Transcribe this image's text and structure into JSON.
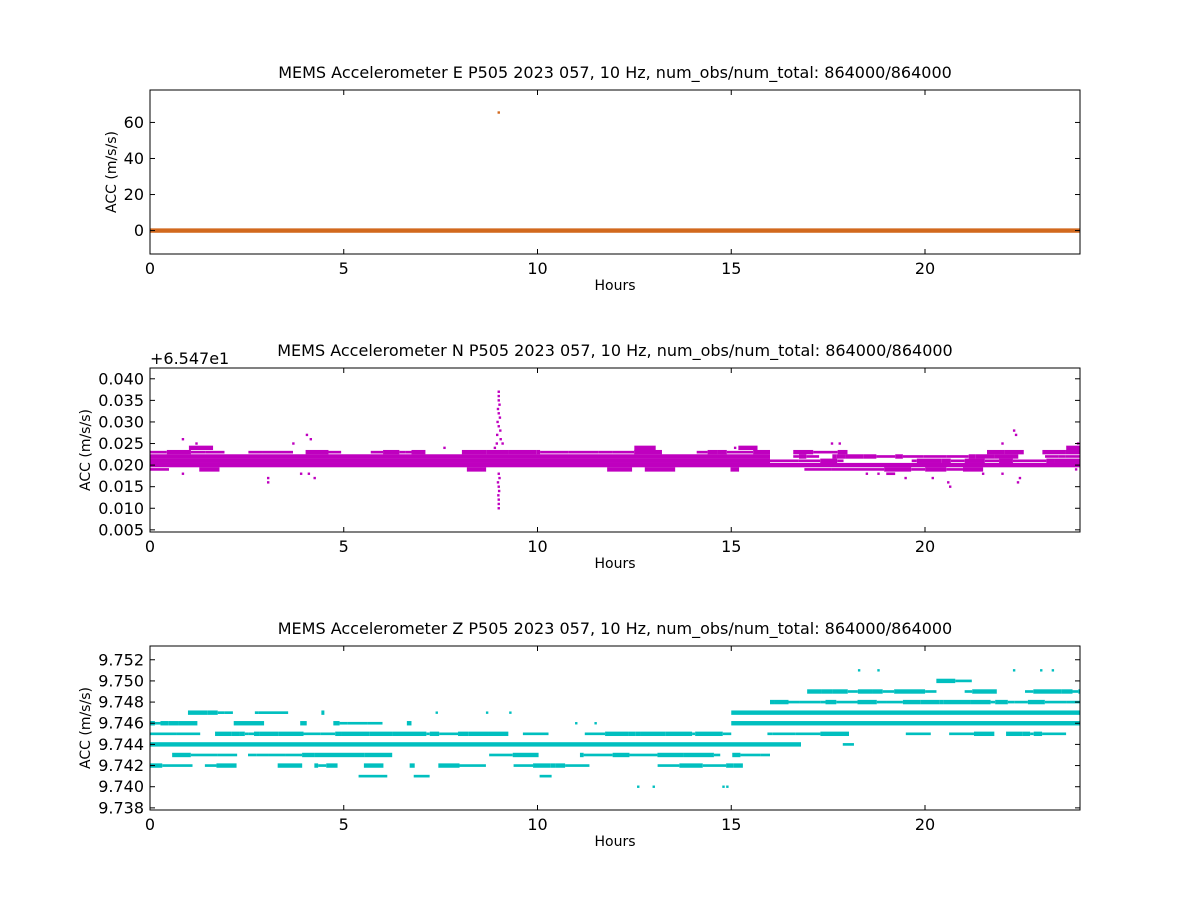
{
  "chart_data": [
    {
      "type": "scatter",
      "title": "MEMS Accelerometer E P505 2023 057, 10 Hz, num_obs/num_total: 864000/864000",
      "xlabel": "Hours",
      "ylabel": "ACC (m/s/s)",
      "offset_text": "",
      "xlim": [
        0,
        24
      ],
      "ylim": [
        -13,
        78
      ],
      "xticks": [
        0,
        5,
        10,
        15,
        20
      ],
      "yticks": [
        0,
        20,
        40,
        60
      ],
      "color": "#d2691e",
      "series": [
        {
          "bands": [
            {
              "y": 0.0,
              "x_start": 0.0,
              "x_end": 24.0,
              "density": 1.0
            }
          ],
          "points": [
            {
              "x": 9.0,
              "y": 65.5
            }
          ]
        }
      ]
    },
    {
      "type": "scatter",
      "title": "MEMS Accelerometer N P505 2023 057, 10 Hz, num_obs/num_total: 864000/864000",
      "xlabel": "Hours",
      "ylabel": "ACC (m/s/s)",
      "offset_text": "+6.547e1",
      "xlim": [
        0,
        24
      ],
      "ylim": [
        0.0045,
        0.0425
      ],
      "xticks": [
        0,
        5,
        10,
        15,
        20
      ],
      "yticks": [
        0.005,
        0.01,
        0.015,
        0.02,
        0.025,
        0.03,
        0.035,
        0.04
      ],
      "ytick_decimals": 3,
      "color": "#bf00bf",
      "series": [
        {
          "bands": [
            {
              "y": 0.021,
              "x_start": 0.0,
              "x_end": 16.0,
              "density": 1.0
            },
            {
              "y": 0.022,
              "x_start": 0.0,
              "x_end": 16.0,
              "density": 1.0
            },
            {
              "y": 0.02,
              "x_start": 0.0,
              "x_end": 16.0,
              "density": 1.0
            },
            {
              "y": 0.023,
              "x_start": 0.0,
              "x_end": 16.0,
              "density": 0.85
            },
            {
              "y": 0.019,
              "x_start": 0.0,
              "x_end": 16.0,
              "density": 0.25
            },
            {
              "y": 0.024,
              "x_start": 0.0,
              "x_end": 16.0,
              "density": 0.12
            },
            {
              "y": 0.02,
              "x_start": 16.0,
              "x_end": 24.0,
              "density": 1.0
            },
            {
              "y": 0.021,
              "x_start": 16.0,
              "x_end": 24.0,
              "density": 0.95
            },
            {
              "y": 0.022,
              "x_start": 16.6,
              "x_end": 24.0,
              "density": 0.75
            },
            {
              "y": 0.019,
              "x_start": 16.0,
              "x_end": 21.5,
              "density": 0.6
            },
            {
              "y": 0.018,
              "x_start": 19.0,
              "x_end": 20.0,
              "density": 0.8
            },
            {
              "y": 0.023,
              "x_start": 16.6,
              "x_end": 18.0,
              "density": 0.6
            },
            {
              "y": 0.023,
              "x_start": 21.6,
              "x_end": 24.0,
              "density": 0.7
            },
            {
              "y": 0.024,
              "x_start": 22.5,
              "x_end": 24.0,
              "density": 0.5
            }
          ],
          "points": [
            {
              "x": 9.0,
              "y": 0.037
            },
            {
              "x": 9.0,
              "y": 0.036
            },
            {
              "x": 9.0,
              "y": 0.035
            },
            {
              "x": 9.02,
              "y": 0.034
            },
            {
              "x": 8.98,
              "y": 0.033
            },
            {
              "x": 9.0,
              "y": 0.032
            },
            {
              "x": 9.03,
              "y": 0.031
            },
            {
              "x": 8.97,
              "y": 0.03
            },
            {
              "x": 9.0,
              "y": 0.029
            },
            {
              "x": 9.04,
              "y": 0.028
            },
            {
              "x": 8.96,
              "y": 0.027
            },
            {
              "x": 9.05,
              "y": 0.026
            },
            {
              "x": 8.95,
              "y": 0.025
            },
            {
              "x": 9.1,
              "y": 0.025
            },
            {
              "x": 8.9,
              "y": 0.024
            },
            {
              "x": 9.0,
              "y": 0.018
            },
            {
              "x": 9.02,
              "y": 0.017
            },
            {
              "x": 8.98,
              "y": 0.016
            },
            {
              "x": 9.0,
              "y": 0.015
            },
            {
              "x": 9.01,
              "y": 0.014
            },
            {
              "x": 8.99,
              "y": 0.013
            },
            {
              "x": 9.0,
              "y": 0.012
            },
            {
              "x": 9.0,
              "y": 0.011
            },
            {
              "x": 9.0,
              "y": 0.01
            },
            {
              "x": 0.85,
              "y": 0.026
            },
            {
              "x": 0.85,
              "y": 0.018
            },
            {
              "x": 1.2,
              "y": 0.025
            },
            {
              "x": 3.05,
              "y": 0.016
            },
            {
              "x": 3.05,
              "y": 0.017
            },
            {
              "x": 3.7,
              "y": 0.025
            },
            {
              "x": 4.05,
              "y": 0.027
            },
            {
              "x": 4.15,
              "y": 0.026
            },
            {
              "x": 4.1,
              "y": 0.018
            },
            {
              "x": 4.25,
              "y": 0.017
            },
            {
              "x": 3.9,
              "y": 0.018
            },
            {
              "x": 7.6,
              "y": 0.024
            },
            {
              "x": 15.1,
              "y": 0.024
            },
            {
              "x": 17.6,
              "y": 0.025
            },
            {
              "x": 17.8,
              "y": 0.025
            },
            {
              "x": 18.5,
              "y": 0.018
            },
            {
              "x": 18.8,
              "y": 0.018
            },
            {
              "x": 19.5,
              "y": 0.017
            },
            {
              "x": 20.2,
              "y": 0.017
            },
            {
              "x": 20.6,
              "y": 0.016
            },
            {
              "x": 20.65,
              "y": 0.015
            },
            {
              "x": 21.5,
              "y": 0.018
            },
            {
              "x": 22.0,
              "y": 0.018
            },
            {
              "x": 22.3,
              "y": 0.028
            },
            {
              "x": 22.35,
              "y": 0.027
            },
            {
              "x": 22.4,
              "y": 0.016
            },
            {
              "x": 22.45,
              "y": 0.017
            },
            {
              "x": 22.0,
              "y": 0.025
            },
            {
              "x": 23.9,
              "y": 0.019
            },
            {
              "x": 23.95,
              "y": 0.025
            }
          ]
        }
      ]
    },
    {
      "type": "scatter",
      "title": "MEMS Accelerometer Z P505 2023 057, 10 Hz, num_obs/num_total: 864000/864000",
      "xlabel": "Hours",
      "ylabel": "ACC (m/s/s)",
      "offset_text": "",
      "xlim": [
        0,
        24
      ],
      "ylim": [
        9.7378,
        9.7533
      ],
      "xticks": [
        0,
        5,
        10,
        15,
        20
      ],
      "yticks": [
        9.738,
        9.74,
        9.742,
        9.744,
        9.746,
        9.748,
        9.75,
        9.752
      ],
      "ytick_decimals": 3,
      "color": "#00bfbf",
      "series": [
        {
          "bands": [
            {
              "y": 9.747,
              "x_start": 0.0,
              "x_end": 4.5,
              "density": 0.45
            },
            {
              "y": 9.746,
              "x_start": 0.0,
              "x_end": 6.0,
              "density": 0.7
            },
            {
              "y": 9.746,
              "x_start": 6.0,
              "x_end": 10.0,
              "density": 0.15
            },
            {
              "y": 9.745,
              "x_start": 0.0,
              "x_end": 15.0,
              "density": 0.95
            },
            {
              "y": 9.744,
              "x_start": 0.0,
              "x_end": 16.8,
              "density": 1.0
            },
            {
              "y": 9.743,
              "x_start": 0.0,
              "x_end": 16.0,
              "density": 0.75
            },
            {
              "y": 9.742,
              "x_start": 0.0,
              "x_end": 15.3,
              "density": 0.7
            },
            {
              "y": 9.741,
              "x_start": 5.0,
              "x_end": 15.0,
              "density": 0.35
            },
            {
              "y": 9.747,
              "x_start": 15.0,
              "x_end": 24.0,
              "density": 1.0
            },
            {
              "y": 9.746,
              "x_start": 15.0,
              "x_end": 24.0,
              "density": 1.0
            },
            {
              "y": 9.748,
              "x_start": 16.0,
              "x_end": 24.0,
              "density": 0.95
            },
            {
              "y": 9.749,
              "x_start": 16.5,
              "x_end": 24.0,
              "density": 0.9
            },
            {
              "y": 9.745,
              "x_start": 15.0,
              "x_end": 24.0,
              "density": 0.7
            },
            {
              "y": 9.75,
              "x_start": 17.0,
              "x_end": 24.0,
              "density": 0.4
            },
            {
              "y": 9.744,
              "x_start": 17.0,
              "x_end": 24.0,
              "density": 0.08
            }
          ],
          "points": [
            {
              "x": 12.6,
              "y": 9.74
            },
            {
              "x": 13.0,
              "y": 9.74
            },
            {
              "x": 14.8,
              "y": 9.74
            },
            {
              "x": 14.9,
              "y": 9.74
            },
            {
              "x": 18.3,
              "y": 9.751
            },
            {
              "x": 18.8,
              "y": 9.751
            },
            {
              "x": 22.3,
              "y": 9.751
            },
            {
              "x": 23.0,
              "y": 9.751
            },
            {
              "x": 23.3,
              "y": 9.751
            },
            {
              "x": 16.2,
              "y": 9.748
            },
            {
              "x": 7.4,
              "y": 9.747
            },
            {
              "x": 8.7,
              "y": 9.747
            },
            {
              "x": 9.3,
              "y": 9.747
            },
            {
              "x": 11.0,
              "y": 9.746
            },
            {
              "x": 11.5,
              "y": 9.746
            }
          ]
        }
      ]
    }
  ]
}
